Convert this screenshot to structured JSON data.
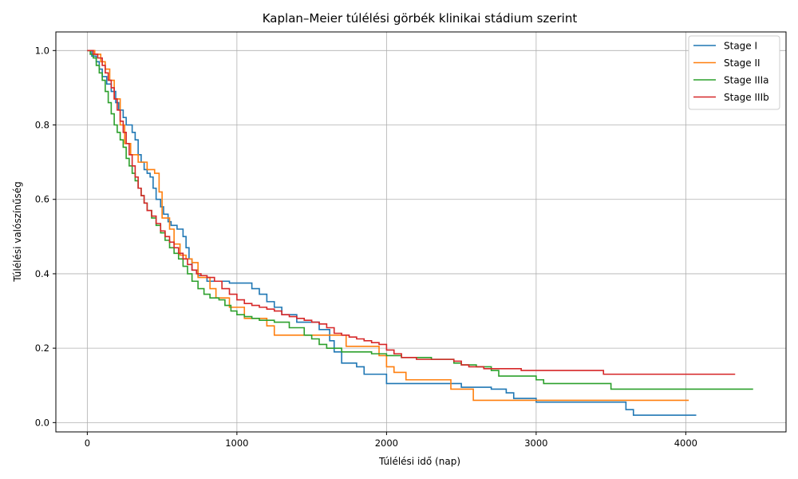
{
  "chart_data": {
    "type": "line",
    "step": true,
    "title": "Kaplan–Meier túlélési görbék klinikai stádium szerint",
    "xlabel": "Túlélési idő (nap)",
    "ylabel": "Túlélési valószínűség",
    "xlim": [
      -210,
      4670
    ],
    "ylim": [
      -0.025,
      1.05
    ],
    "xticks": [
      0,
      1000,
      2000,
      3000,
      4000
    ],
    "yticks": [
      0.0,
      0.2,
      0.4,
      0.6,
      0.8,
      1.0
    ],
    "xtick_labels": [
      "0",
      "1000",
      "2000",
      "3000",
      "4000"
    ],
    "ytick_labels": [
      "0.0",
      "0.2",
      "0.4",
      "0.6",
      "0.8",
      "1.0"
    ],
    "grid": true,
    "legend_position": "top-right",
    "series": [
      {
        "name": "Stage I",
        "color": "#1f77b4",
        "x": [
          0,
          30,
          60,
          80,
          100,
          130,
          160,
          190,
          210,
          240,
          260,
          300,
          320,
          340,
          360,
          380,
          400,
          420,
          440,
          460,
          490,
          510,
          540,
          560,
          600,
          640,
          660,
          680,
          700,
          740,
          800,
          950,
          1100,
          1150,
          1200,
          1250,
          1300,
          1400,
          1550,
          1620,
          1650,
          1700,
          1800,
          1850,
          2000,
          2200,
          2500,
          2700,
          2800,
          2850,
          3000,
          3200,
          3400,
          3600,
          3650,
          4070
        ],
        "y": [
          1.0,
          0.985,
          0.97,
          0.95,
          0.93,
          0.91,
          0.89,
          0.86,
          0.84,
          0.82,
          0.8,
          0.78,
          0.76,
          0.72,
          0.7,
          0.68,
          0.67,
          0.66,
          0.63,
          0.6,
          0.58,
          0.56,
          0.54,
          0.53,
          0.52,
          0.5,
          0.47,
          0.44,
          0.41,
          0.395,
          0.38,
          0.375,
          0.36,
          0.345,
          0.325,
          0.31,
          0.29,
          0.27,
          0.25,
          0.22,
          0.19,
          0.16,
          0.15,
          0.13,
          0.105,
          0.105,
          0.095,
          0.09,
          0.08,
          0.065,
          0.055,
          0.055,
          0.055,
          0.035,
          0.02,
          0.02
        ]
      },
      {
        "name": "Stage II",
        "color": "#ff7f0e",
        "x": [
          0,
          50,
          90,
          120,
          150,
          180,
          220,
          250,
          290,
          340,
          400,
          450,
          480,
          500,
          550,
          580,
          620,
          660,
          700,
          740,
          820,
          860,
          950,
          1050,
          1200,
          1250,
          1350,
          1550,
          1730,
          1950,
          2000,
          2050,
          2130,
          2300,
          2430,
          2580,
          2700,
          3000,
          4020
        ],
        "y": [
          1.0,
          0.99,
          0.97,
          0.95,
          0.92,
          0.87,
          0.8,
          0.75,
          0.72,
          0.7,
          0.68,
          0.67,
          0.62,
          0.55,
          0.52,
          0.48,
          0.45,
          0.44,
          0.43,
          0.39,
          0.36,
          0.335,
          0.31,
          0.28,
          0.26,
          0.235,
          0.235,
          0.235,
          0.205,
          0.18,
          0.15,
          0.135,
          0.115,
          0.115,
          0.09,
          0.06,
          0.06,
          0.06,
          0.06
        ]
      },
      {
        "name": "Stage IIIa",
        "color": "#2ca02c",
        "x": [
          0,
          20,
          40,
          60,
          80,
          100,
          120,
          140,
          160,
          180,
          200,
          220,
          240,
          260,
          280,
          300,
          320,
          340,
          360,
          380,
          400,
          430,
          460,
          490,
          520,
          550,
          580,
          610,
          640,
          670,
          700,
          740,
          780,
          820,
          880,
          920,
          960,
          1000,
          1050,
          1100,
          1150,
          1250,
          1350,
          1450,
          1500,
          1550,
          1600,
          1650,
          1700,
          1800,
          1900,
          2000,
          2100,
          2300,
          2450,
          2500,
          2600,
          2700,
          2750,
          2900,
          3000,
          3050,
          3300,
          3500,
          4450
        ],
        "y": [
          1.0,
          0.99,
          0.98,
          0.96,
          0.94,
          0.92,
          0.89,
          0.86,
          0.83,
          0.8,
          0.78,
          0.76,
          0.74,
          0.71,
          0.69,
          0.67,
          0.65,
          0.63,
          0.61,
          0.59,
          0.57,
          0.55,
          0.53,
          0.51,
          0.49,
          0.47,
          0.455,
          0.44,
          0.42,
          0.4,
          0.38,
          0.36,
          0.345,
          0.335,
          0.33,
          0.315,
          0.3,
          0.29,
          0.285,
          0.28,
          0.275,
          0.27,
          0.255,
          0.235,
          0.225,
          0.21,
          0.2,
          0.2,
          0.19,
          0.19,
          0.185,
          0.18,
          0.175,
          0.17,
          0.16,
          0.155,
          0.15,
          0.14,
          0.125,
          0.125,
          0.115,
          0.105,
          0.105,
          0.09,
          0.09
        ]
      },
      {
        "name": "Stage IIIb",
        "color": "#d62728",
        "x": [
          0,
          40,
          70,
          100,
          120,
          140,
          160,
          180,
          200,
          220,
          240,
          260,
          280,
          300,
          320,
          340,
          360,
          380,
          400,
          430,
          460,
          490,
          520,
          550,
          580,
          610,
          640,
          670,
          700,
          730,
          760,
          800,
          850,
          900,
          950,
          1000,
          1050,
          1100,
          1150,
          1200,
          1250,
          1300,
          1350,
          1400,
          1450,
          1500,
          1550,
          1600,
          1650,
          1700,
          1750,
          1800,
          1850,
          1900,
          1950,
          2000,
          2050,
          2100,
          2200,
          2300,
          2450,
          2500,
          2550,
          2650,
          2900,
          3150,
          3400,
          3450,
          4330
        ],
        "y": [
          1.0,
          0.99,
          0.98,
          0.96,
          0.94,
          0.92,
          0.9,
          0.87,
          0.84,
          0.81,
          0.78,
          0.75,
          0.72,
          0.69,
          0.66,
          0.63,
          0.61,
          0.59,
          0.57,
          0.555,
          0.535,
          0.515,
          0.5,
          0.485,
          0.47,
          0.455,
          0.44,
          0.425,
          0.41,
          0.4,
          0.395,
          0.39,
          0.38,
          0.36,
          0.345,
          0.33,
          0.32,
          0.315,
          0.31,
          0.305,
          0.3,
          0.29,
          0.285,
          0.28,
          0.275,
          0.27,
          0.265,
          0.255,
          0.24,
          0.235,
          0.23,
          0.225,
          0.22,
          0.215,
          0.21,
          0.195,
          0.185,
          0.175,
          0.17,
          0.17,
          0.165,
          0.155,
          0.15,
          0.145,
          0.14,
          0.14,
          0.14,
          0.13,
          0.13
        ]
      }
    ]
  }
}
